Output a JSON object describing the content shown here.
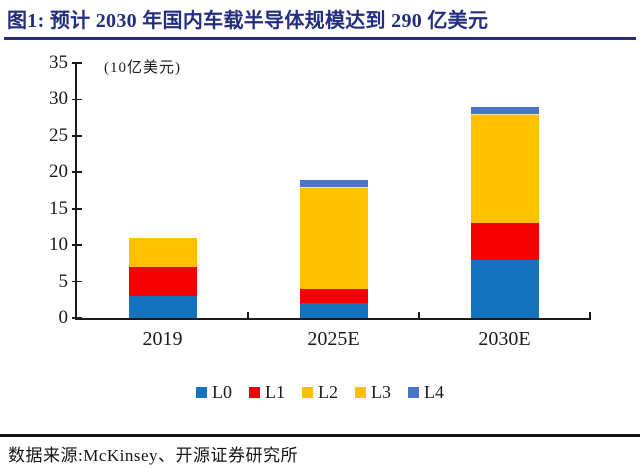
{
  "figure": {
    "title": "图1: 预计 2030 年国内车载半导体规模达到 290 亿美元",
    "source": "数据来源:McKinsey、开源证券研究所"
  },
  "chart_data": {
    "type": "bar",
    "stacked": true,
    "title": "预计 2030 年国内车载半导体规模达到 290 亿美元",
    "unit_label": "(10亿美元)",
    "categories": [
      "2019",
      "2025E",
      "2030E"
    ],
    "series": [
      {
        "name": "L0",
        "color": "#1573BD",
        "values": [
          3,
          2,
          8
        ]
      },
      {
        "name": "L1",
        "color": "#F40000",
        "values": [
          4,
          2,
          5
        ]
      },
      {
        "name": "L2",
        "color": "#FFC000",
        "values": [
          4,
          13,
          13
        ]
      },
      {
        "name": "L3",
        "color": "#FFC000",
        "values": [
          0,
          1,
          2
        ]
      },
      {
        "name": "L4",
        "color": "#4A75C6",
        "values": [
          0,
          1,
          1
        ]
      }
    ],
    "totals": [
      11,
      19,
      29
    ],
    "ylim": [
      0,
      35
    ],
    "yticks": [
      0,
      5,
      10,
      15,
      20,
      25,
      30,
      35
    ],
    "legend_position": "bottom",
    "grid": false
  },
  "colors": {
    "title_navy": "#232F7E",
    "axis": "#1A1A1A",
    "rule": "#151515"
  }
}
